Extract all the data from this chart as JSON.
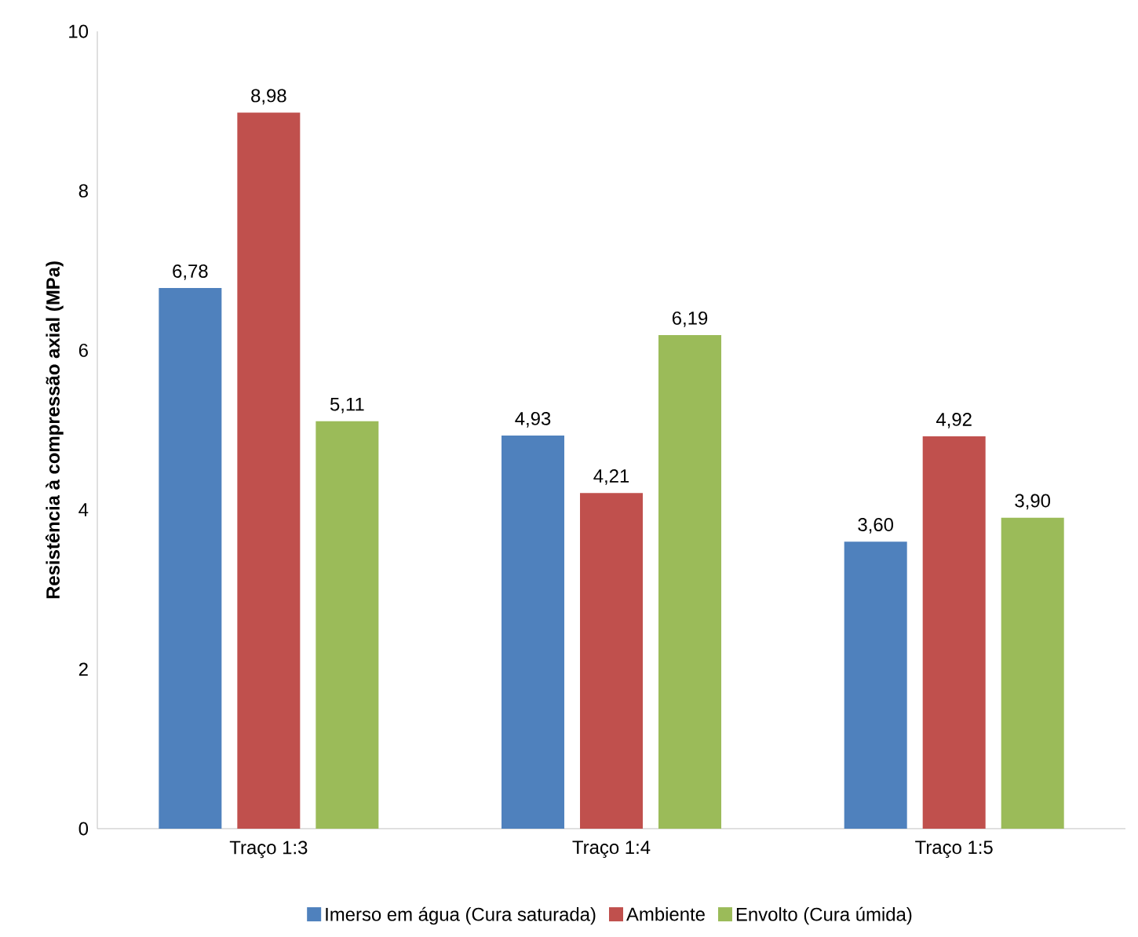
{
  "chart_data": {
    "type": "bar",
    "ylabel": "Resistência à compressão axial (MPa)",
    "categories": [
      "Traço 1:3",
      "Traço 1:4",
      "Traço 1:5"
    ],
    "series": [
      {
        "name": "Imerso em água (Cura saturada)",
        "color": "#4f81bd",
        "values": [
          6.78,
          4.93,
          3.6
        ],
        "value_labels": [
          "6,78",
          "4,93",
          "3,60"
        ]
      },
      {
        "name": "Ambiente",
        "color": "#c0504d",
        "values": [
          8.98,
          4.21,
          4.92
        ],
        "value_labels": [
          "8,98",
          "4,21",
          "4,92"
        ]
      },
      {
        "name": "Envolto (Cura úmida)",
        "color": "#9bbb59",
        "values": [
          5.11,
          6.19,
          3.9
        ],
        "value_labels": [
          "5,11",
          "6,19",
          "3,90"
        ]
      }
    ],
    "ylim": [
      0,
      10
    ],
    "yticks": [
      0,
      2,
      4,
      6,
      8,
      10
    ],
    "legend": "bottom"
  }
}
